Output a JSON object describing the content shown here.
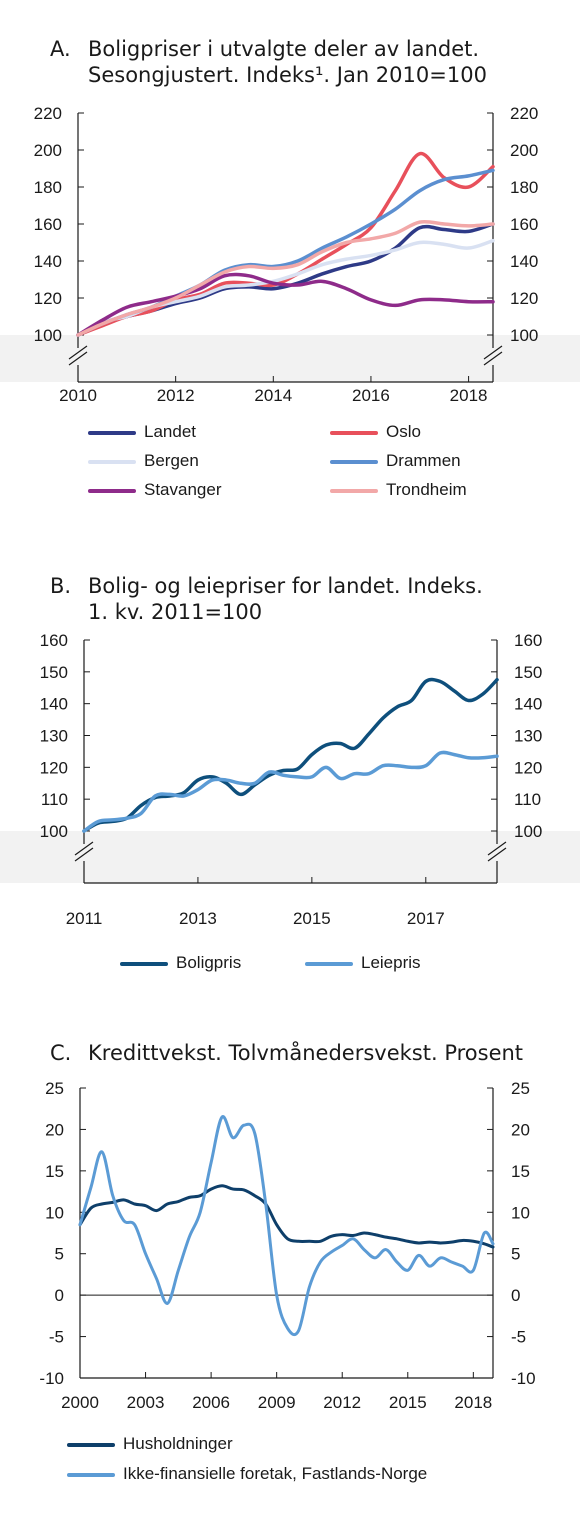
{
  "chart_data": [
    {
      "id": "A",
      "type": "line",
      "label": "A.",
      "title_lines": [
        "Boligpriser i utvalgte deler av landet.",
        "Sesongjustert. Indeks¹. Jan 2010=100"
      ],
      "x_ticks": [
        "2010",
        "2012",
        "2014",
        "2016",
        "2018"
      ],
      "y_ticks": [
        "100",
        "120",
        "140",
        "160",
        "180",
        "200",
        "220"
      ],
      "xlim": [
        2010,
        2018.5
      ],
      "ylim": [
        100,
        220
      ],
      "x": [
        2010,
        2010.5,
        2011,
        2011.5,
        2012,
        2012.5,
        2013,
        2013.5,
        2014,
        2014.5,
        2015,
        2015.5,
        2016,
        2016.5,
        2017,
        2017.5,
        2018,
        2018.5
      ],
      "series": [
        {
          "name": "Landet",
          "color": "#2e3a87",
          "values": [
            100,
            106,
            110,
            113,
            117,
            120,
            125,
            126,
            125,
            128,
            133,
            137,
            140,
            147,
            158,
            157,
            156,
            160
          ]
        },
        {
          "name": "Oslo",
          "color": "#e8505b",
          "values": [
            100,
            105,
            110,
            113,
            119,
            122,
            128,
            128,
            127,
            133,
            141,
            149,
            158,
            178,
            198,
            185,
            180,
            191
          ]
        },
        {
          "name": "Bergen",
          "color": "#d9e1f2",
          "values": [
            100,
            107,
            110,
            115,
            118,
            121,
            126,
            127,
            129,
            133,
            138,
            141,
            143,
            146,
            150,
            149,
            147,
            151
          ]
        },
        {
          "name": "Drammen",
          "color": "#5b8fd0",
          "values": [
            100,
            106,
            111,
            115,
            121,
            127,
            135,
            138,
            137,
            140,
            147,
            153,
            160,
            168,
            178,
            184,
            186,
            189
          ]
        },
        {
          "name": "Stavanger",
          "color": "#8e2b8a",
          "values": [
            100,
            108,
            115,
            118,
            121,
            125,
            132,
            132,
            128,
            127,
            129,
            125,
            119,
            116,
            119,
            119,
            118,
            118
          ]
        },
        {
          "name": "Trondheim",
          "color": "#f2a8a8",
          "values": [
            100,
            106,
            111,
            115,
            120,
            127,
            134,
            137,
            136,
            138,
            145,
            150,
            152,
            155,
            161,
            160,
            159,
            160
          ]
        }
      ],
      "legend": [
        [
          "Landet",
          "Oslo"
        ],
        [
          "Bergen",
          "Drammen"
        ],
        [
          "Stavanger",
          "Trondheim"
        ]
      ]
    },
    {
      "id": "B",
      "type": "line",
      "label": "B.",
      "title_lines": [
        "Bolig- og leiepriser for landet. Indeks.",
        "1. kv. 2011=100"
      ],
      "x_ticks": [
        "2011",
        "2013",
        "2015",
        "2017"
      ],
      "y_ticks": [
        "100",
        "110",
        "120",
        "130",
        "140",
        "150",
        "160"
      ],
      "xlim": [
        2011,
        2018.25
      ],
      "ylim": [
        100,
        160
      ],
      "x": [
        2011,
        2011.25,
        2011.5,
        2011.75,
        2012,
        2012.25,
        2012.5,
        2012.75,
        2013,
        2013.25,
        2013.5,
        2013.75,
        2014,
        2014.25,
        2014.5,
        2014.75,
        2015,
        2015.25,
        2015.5,
        2015.75,
        2016,
        2016.25,
        2016.5,
        2016.75,
        2017,
        2017.25,
        2017.5,
        2017.75,
        2018,
        2018.25
      ],
      "series": [
        {
          "name": "Boligpris",
          "color": "#0e4f7c",
          "values": [
            100,
            102.5,
            103,
            104,
            108,
            110.5,
            111,
            112,
            116,
            117,
            115,
            111.5,
            114.5,
            117.5,
            119,
            119.5,
            124,
            127,
            127.5,
            126,
            130.5,
            135.5,
            139,
            141,
            147,
            147,
            144,
            141,
            143,
            147.5
          ]
        },
        {
          "name": "Leiepris",
          "color": "#5b9bd5",
          "values": [
            100,
            103,
            103.5,
            104,
            105.5,
            111,
            111.5,
            111,
            113,
            116,
            116,
            115,
            115,
            118.5,
            117.5,
            117,
            117,
            120,
            116.5,
            118,
            118,
            120.5,
            120.5,
            120,
            120.5,
            124.5,
            124,
            123,
            123,
            123.5
          ]
        }
      ],
      "legend": [
        [
          "Boligpris",
          "Leiepris"
        ]
      ]
    },
    {
      "id": "C",
      "type": "line",
      "label": "C.",
      "title_lines": [
        "Kredittvekst. Tolvmånedersvekst. Prosent"
      ],
      "x_ticks": [
        "2000",
        "2003",
        "2006",
        "2009",
        "2012",
        "2015",
        "2018"
      ],
      "y_ticks": [
        "-10",
        "-5",
        "0",
        "5",
        "10",
        "15",
        "20",
        "25"
      ],
      "xlim": [
        2000,
        2018.9
      ],
      "ylim": [
        -10,
        25
      ],
      "x": [
        2000,
        2000.5,
        2001,
        2001.5,
        2002,
        2002.5,
        2003,
        2003.5,
        2004,
        2004.5,
        2005,
        2005.5,
        2006,
        2006.5,
        2007,
        2007.5,
        2008,
        2008.5,
        2009,
        2009.5,
        2010,
        2010.5,
        2011,
        2011.5,
        2012,
        2012.5,
        2013,
        2013.5,
        2014,
        2014.5,
        2015,
        2015.5,
        2016,
        2016.5,
        2017,
        2017.5,
        2018,
        2018.5,
        2018.9
      ],
      "series": [
        {
          "name": "Husholdninger",
          "color": "#0e3f6a",
          "values": [
            8.5,
            10.5,
            11,
            11.2,
            11.5,
            11,
            10.8,
            10.2,
            11,
            11.3,
            11.8,
            12,
            12.8,
            13.2,
            12.8,
            12.7,
            12,
            11,
            8.5,
            6.8,
            6.5,
            6.5,
            6.5,
            7.1,
            7.3,
            7.2,
            7.5,
            7.3,
            7,
            6.8,
            6.5,
            6.3,
            6.4,
            6.3,
            6.4,
            6.6,
            6.5,
            6.2,
            5.8
          ]
        },
        {
          "name": "Ikke-finansielle foretak, Fastlands-Norge",
          "color": "#5b9bd5",
          "values": [
            8.5,
            13,
            17.3,
            12,
            9,
            8.5,
            5,
            2,
            -1,
            3,
            7,
            10,
            16,
            21.5,
            19,
            20.5,
            19.5,
            11,
            0,
            -4,
            -4.3,
            1,
            4,
            5.2,
            6,
            6.8,
            5.5,
            4.5,
            5.5,
            4,
            3,
            4.8,
            3.5,
            4.5,
            4,
            3.5,
            3,
            7.5,
            6.2
          ]
        }
      ],
      "legend": [
        [
          "Husholdninger"
        ],
        [
          "Ikke-finansielle foretak, Fastlands-Norge"
        ]
      ]
    }
  ]
}
